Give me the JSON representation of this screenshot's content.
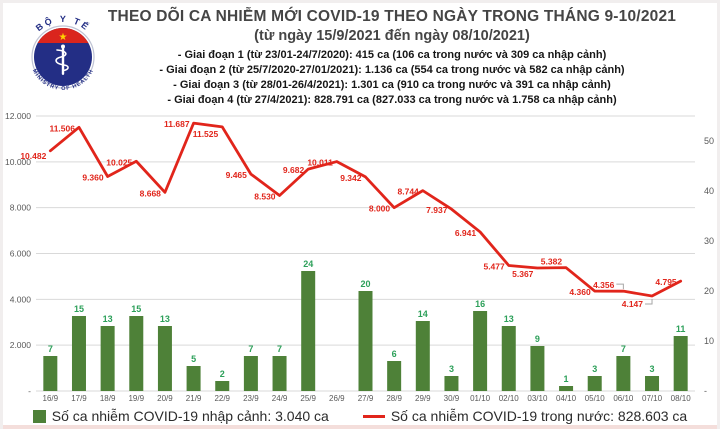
{
  "logo": {
    "top_text": "BỘ Y TẾ",
    "bottom_text": "MINISTRY OF HEALTH",
    "colors": {
      "navy": "#232e85",
      "red": "#da251d",
      "star_yellow": "#ffd200"
    }
  },
  "header": {
    "title": "THEO DÕI CA NHIỄM MỚI COVID-19 THEO NGÀY TRONG THÁNG 9-10/2021",
    "subtitle": "(từ ngày 15/9/2021 đến ngày 08/10/2021)",
    "bullets": [
      "- Giai đoạn 1 (từ 23/01-24/7/2020): 415 ca (106 ca trong nước và 309 ca nhập cảnh)",
      "- Giai đoạn 2 (từ 25/7/2020-27/01/2021): 1.136 ca (554 ca trong nước và 582 ca nhập cảnh)",
      "- Giai đoạn 3 (từ 28/01-26/4/2021): 1.301 ca (910 ca trong nước và 391 ca nhập cảnh)",
      "- Giai đoạn 4 (từ 27/4/2021): 828.791 ca (827.033 ca trong nước và 1.758 ca nhập cảnh)"
    ]
  },
  "colors": {
    "line_red": "#e1251b",
    "bar_green": "#4e8138",
    "bar_label_green": "#2da05a",
    "grid": "#d9d9d9",
    "axis_text": "#595959",
    "callout_gray": "#a6a6a6"
  },
  "legend": {
    "items": [
      {
        "label": "Số ca nhiễm COVID-19 nhập cảnh: 3.040 ca",
        "swatch": "bar"
      },
      {
        "label": "Số ca nhiễm COVID-19 trong nước: 828.603 ca",
        "swatch": "line"
      }
    ]
  },
  "chart_data": {
    "type": "combo",
    "title": "THEO DÕI CA NHIỄM MỚI COVID-19 THEO NGÀY TRONG THÁNG 9-10/2021",
    "categories": [
      "16/9",
      "17/9",
      "18/9",
      "19/9",
      "20/9",
      "21/9",
      "22/9",
      "23/9",
      "24/9",
      "25/9",
      "26/9",
      "27/9",
      "28/9",
      "29/9",
      "30/9",
      "01/10",
      "02/10",
      "03/10",
      "04/10",
      "05/10",
      "06/10",
      "07/10",
      "08/10"
    ],
    "series": [
      {
        "name": "Số ca nhiễm COVID-19 nhập cảnh",
        "total_label": "3.040 ca",
        "type": "bar",
        "axis": "right",
        "values": [
          7,
          15,
          13,
          15,
          13,
          5,
          2,
          7,
          7,
          24,
          0,
          20,
          6,
          14,
          3,
          16,
          13,
          9,
          1,
          3,
          7,
          3,
          11
        ]
      },
      {
        "name": "Số ca nhiễm COVID-19 trong nước",
        "total_label": "828.603 ca",
        "type": "line",
        "axis": "left",
        "values": [
          10482,
          11506,
          9360,
          10025,
          8668,
          11687,
          11525,
          9465,
          8530,
          9682,
          10011,
          9342,
          8000,
          8744,
          7937,
          6941,
          5477,
          5367,
          5382,
          4360,
          4356,
          4147,
          4795
        ],
        "point_labels": [
          "10.482",
          "11.506",
          "9.360",
          "10.025",
          "8.668",
          "11.687",
          "11.525",
          "9.465",
          "8.530",
          "9.682",
          "10.011",
          "9.342",
          "8.000",
          "8.744",
          "7.937",
          "6.941",
          "5.477",
          "5.367",
          "5.382",
          "4.360",
          "4.356",
          "4.147",
          "4.795"
        ]
      }
    ],
    "left_axis": {
      "min": 0,
      "max": 12000,
      "tick_values": [
        12000,
        10000,
        8000,
        6000,
        4000,
        2000,
        0
      ],
      "tick_labels": [
        "12.000",
        "10.000",
        "8.000",
        "6.000",
        "4.000",
        "2.000",
        "-"
      ]
    },
    "right_axis": {
      "min": 0,
      "max": 55,
      "tick_values": [
        50,
        40,
        30,
        20,
        10,
        0
      ],
      "tick_labels": [
        "50",
        "40",
        "30",
        "20",
        "10",
        "-"
      ]
    },
    "grid": true,
    "legend_position": "bottom",
    "annotations": {
      "label_dy_overrides": {
        "0": 8,
        "6": 10,
        "17": 9,
        "18": -3
      },
      "callout_indices": [
        20,
        21
      ]
    }
  }
}
